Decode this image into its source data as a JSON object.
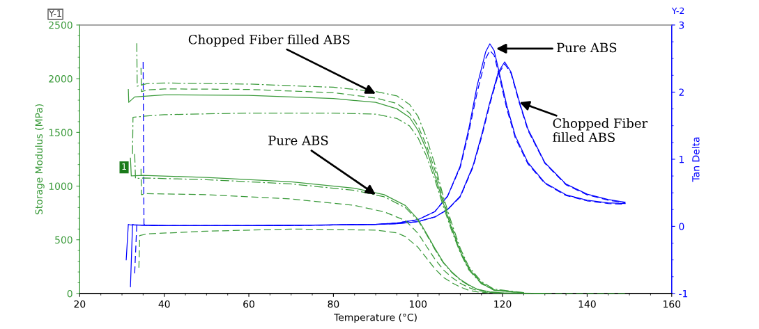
{
  "chart_data": {
    "type": "line",
    "xlabel": "Temperature (°C)",
    "ylabel": "Storage Modulus (MPa)",
    "y2label": "Tan Delta",
    "xlim": [
      20,
      160
    ],
    "xticks": [
      20,
      40,
      60,
      80,
      100,
      120,
      140,
      160
    ],
    "ylim": [
      0,
      2500
    ],
    "yticks": [
      0,
      500,
      1000,
      1500,
      2000,
      2500
    ],
    "y2lim": [
      -1,
      3
    ],
    "y2ticks": [
      -1,
      0,
      1,
      2,
      3
    ],
    "grid": false,
    "legend": false,
    "marker": "none",
    "series": [
      {
        "color": "#3a9a3a",
        "line_style": "dashdot",
        "x": [
          33.5,
          33.6,
          36,
          40,
          60,
          80,
          90,
          95,
          98,
          100,
          102,
          104,
          106,
          108,
          110,
          112,
          115,
          118,
          125
        ],
        "values": [
          2330,
          1930,
          1955,
          1960,
          1950,
          1920,
          1880,
          1840,
          1760,
          1650,
          1450,
          1200,
          900,
          650,
          420,
          250,
          110,
          40,
          8
        ]
      },
      {
        "color": "#3a9a3a",
        "line_style": "dashed",
        "x": [
          34.5,
          34.6,
          36,
          40,
          60,
          80,
          90,
          95,
          98,
          100,
          102,
          104,
          106,
          108,
          110,
          112,
          115,
          118,
          125
        ],
        "values": [
          2100,
          1880,
          1895,
          1905,
          1900,
          1870,
          1820,
          1770,
          1680,
          1560,
          1380,
          1150,
          870,
          620,
          400,
          240,
          100,
          35,
          6
        ]
      },
      {
        "color": "#3a9a3a",
        "line_style": "solid",
        "x": [
          31.5,
          31.6,
          33,
          40,
          60,
          80,
          90,
          95,
          98,
          100,
          102,
          104,
          106,
          108,
          110,
          112,
          115,
          118,
          125
        ],
        "values": [
          1900,
          1780,
          1830,
          1850,
          1845,
          1815,
          1780,
          1720,
          1640,
          1520,
          1340,
          1100,
          840,
          600,
          390,
          230,
          95,
          30,
          5
        ]
      },
      {
        "color": "#3a9a3a",
        "line_style": "dashdot",
        "x": [
          32.5,
          32.6,
          35,
          40,
          60,
          80,
          90,
          95,
          98,
          100,
          102,
          104,
          106,
          108,
          110,
          112,
          115,
          118,
          125
        ],
        "values": [
          1300,
          1640,
          1650,
          1665,
          1680,
          1680,
          1670,
          1630,
          1560,
          1450,
          1280,
          1060,
          810,
          580,
          380,
          220,
          90,
          30,
          5
        ]
      },
      {
        "color": "#3a9a3a",
        "line_style": "solid",
        "x": [
          32,
          32.2,
          35,
          50,
          70,
          85,
          92,
          97,
          100,
          102,
          104,
          106,
          108,
          110,
          112,
          114,
          117,
          120,
          130
        ],
        "values": [
          1260,
          1095,
          1100,
          1080,
          1040,
          980,
          920,
          820,
          690,
          560,
          420,
          290,
          200,
          130,
          80,
          40,
          15,
          5,
          1
        ]
      },
      {
        "color": "#3a9a3a",
        "line_style": "dashdot",
        "x": [
          33,
          33.2,
          35,
          50,
          70,
          85,
          92,
          97,
          100,
          102,
          104,
          106,
          108,
          110,
          112,
          114,
          117,
          120,
          130
        ],
        "values": [
          1300,
          1070,
          1075,
          1060,
          1020,
          960,
          900,
          800,
          680,
          550,
          410,
          285,
          195,
          125,
          75,
          38,
          14,
          4,
          1
        ]
      },
      {
        "color": "#3a9a3a",
        "line_style": "dashed",
        "x": [
          34.5,
          34.6,
          36,
          50,
          70,
          85,
          92,
          97,
          100,
          102,
          104,
          106,
          108,
          110,
          112,
          114,
          117,
          120,
          130
        ],
        "values": [
          1160,
          920,
          930,
          920,
          880,
          820,
          760,
          680,
          560,
          440,
          320,
          220,
          150,
          95,
          55,
          28,
          10,
          3,
          1
        ]
      },
      {
        "color": "#3a9a3a",
        "line_style": "dashed",
        "x": [
          34,
          34.2,
          36,
          50,
          70,
          90,
          95,
          97,
          100,
          102,
          104,
          106,
          108,
          110,
          112,
          114,
          117,
          120,
          130,
          149
        ],
        "values": [
          240,
          540,
          555,
          580,
          600,
          590,
          565,
          530,
          430,
          330,
          230,
          150,
          100,
          60,
          30,
          15,
          5,
          2,
          0,
          0
        ]
      },
      {
        "axis": "y2",
        "color": "#0000ff",
        "line_style": "solid",
        "x": [
          31,
          31.5,
          32,
          40,
          60,
          80,
          90,
          95,
          100,
          104,
          107,
          110,
          112,
          114,
          116,
          117,
          118,
          119,
          121,
          123,
          126,
          130,
          135,
          140,
          145,
          149
        ],
        "values": [
          -0.5,
          0.03,
          0.02,
          0.01,
          0.01,
          0.02,
          0.03,
          0.05,
          0.1,
          0.22,
          0.45,
          0.9,
          1.45,
          2.1,
          2.6,
          2.72,
          2.62,
          2.35,
          1.8,
          1.35,
          0.95,
          0.65,
          0.47,
          0.39,
          0.35,
          0.34
        ]
      },
      {
        "axis": "y2",
        "color": "#0000ff",
        "line_style": "dashed",
        "x": [
          33,
          33.5,
          34,
          40,
          60,
          80,
          90,
          95,
          100,
          104,
          107,
          110,
          112,
          114,
          116,
          117,
          118,
          119,
          121,
          123,
          126,
          130,
          135,
          140,
          145,
          149
        ],
        "values": [
          -0.7,
          0.02,
          0.02,
          0.01,
          0.01,
          0.02,
          0.03,
          0.05,
          0.1,
          0.22,
          0.45,
          0.88,
          1.4,
          2.0,
          2.5,
          2.62,
          2.55,
          2.3,
          1.75,
          1.32,
          0.93,
          0.64,
          0.46,
          0.38,
          0.34,
          0.33
        ]
      },
      {
        "axis": "y2",
        "color": "#0000ff",
        "line_style": "solid",
        "x": [
          32,
          32.5,
          33,
          40,
          60,
          80,
          90,
          95,
          100,
          104,
          107,
          110,
          113,
          115,
          117,
          119,
          120.5,
          122,
          124,
          126,
          130,
          135,
          140,
          145,
          149
        ],
        "values": [
          -0.9,
          0.03,
          0.02,
          0.01,
          0.01,
          0.02,
          0.03,
          0.04,
          0.07,
          0.14,
          0.25,
          0.45,
          0.9,
          1.35,
          1.85,
          2.3,
          2.45,
          2.3,
          1.85,
          1.45,
          0.95,
          0.63,
          0.48,
          0.4,
          0.36
        ]
      },
      {
        "axis": "y2",
        "color": "#0000ff",
        "line_style": "dashed",
        "x": [
          35,
          35.2,
          35.5,
          40,
          60,
          80,
          90,
          95,
          100,
          104,
          107,
          110,
          113,
          115,
          117,
          119,
          120.5,
          122,
          124,
          126,
          130,
          135,
          140,
          145,
          149
        ],
        "values": [
          2.45,
          0.03,
          0.02,
          0.01,
          0.01,
          0.02,
          0.03,
          0.04,
          0.07,
          0.14,
          0.25,
          0.44,
          0.88,
          1.32,
          1.82,
          2.27,
          2.42,
          2.28,
          1.83,
          1.43,
          0.94,
          0.62,
          0.47,
          0.39,
          0.35
        ]
      }
    ],
    "annotations": [
      {
        "text": "Chopped Fiber filled ABS",
        "x": 90,
        "y": 1860
      },
      {
        "text": "Pure ABS",
        "x": 90,
        "y": 920
      },
      {
        "text": "Pure ABS",
        "x": 118.5,
        "y": 2280
      },
      {
        "text": "Chopped Fiber filled ABS",
        "x": 124,
        "y": 1780
      },
      "Y-1",
      "Y-2",
      "1"
    ]
  }
}
